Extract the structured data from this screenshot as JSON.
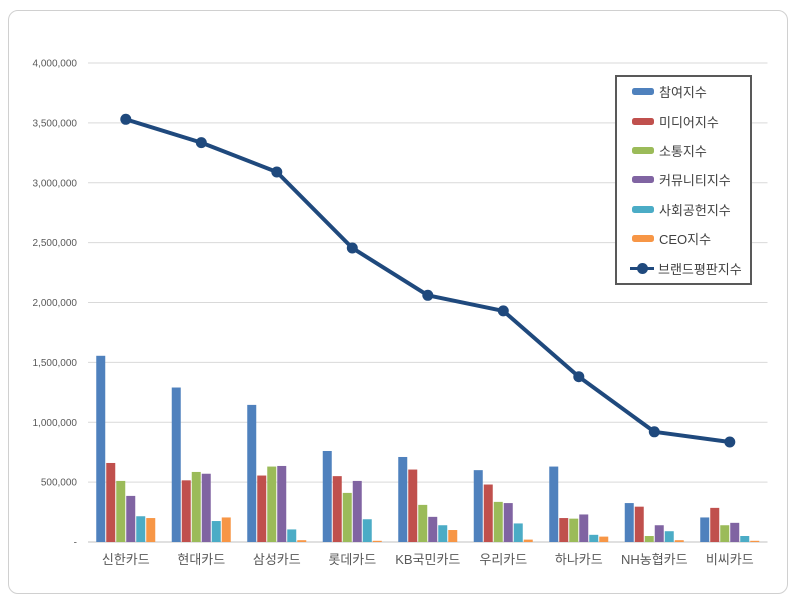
{
  "page": {
    "background": "#ffffff",
    "frame_border_color": "#d0d0d0"
  },
  "chart_data": {
    "type": "combo-bar-line",
    "title": "",
    "categories": [
      "신한카드",
      "현대카드",
      "삼성카드",
      "롯데카드",
      "KB국민카드",
      "우리카드",
      "하나카드",
      "NH농협카드",
      "비씨카드"
    ],
    "series": [
      {
        "name": "참여지수",
        "type": "bar",
        "color": "#4F81BD",
        "values": [
          1555000,
          1290000,
          1145000,
          760000,
          710000,
          600000,
          630000,
          325000,
          205000
        ]
      },
      {
        "name": "미디어지수",
        "type": "bar",
        "color": "#C0504D",
        "values": [
          660000,
          515000,
          555000,
          550000,
          605000,
          480000,
          200000,
          295000,
          285000
        ]
      },
      {
        "name": "소통지수",
        "type": "bar",
        "color": "#9BBB59",
        "values": [
          510000,
          585000,
          630000,
          410000,
          310000,
          335000,
          195000,
          50000,
          140000
        ]
      },
      {
        "name": "커뮤니티지수",
        "type": "bar",
        "color": "#8064A2",
        "values": [
          385000,
          570000,
          635000,
          510000,
          210000,
          325000,
          230000,
          140000,
          160000
        ]
      },
      {
        "name": "사회공헌지수",
        "type": "bar",
        "color": "#4BACC6",
        "values": [
          215000,
          175000,
          105000,
          190000,
          140000,
          155000,
          60000,
          90000,
          50000
        ]
      },
      {
        "name": "CEO지수",
        "type": "bar",
        "color": "#F79646",
        "values": [
          200000,
          205000,
          15000,
          10000,
          100000,
          20000,
          45000,
          15000,
          10000
        ]
      }
    ],
    "line_series": {
      "name": "브랜드평판지수",
      "type": "line",
      "color": "#1F497D",
      "values": [
        3530000,
        3335000,
        3090000,
        2455000,
        2060000,
        1930000,
        1380000,
        920000,
        835000
      ]
    },
    "y_axis": {
      "min": 0,
      "max": 4000000,
      "interval": 500000,
      "ticks": [
        {
          "value": 4000000,
          "label": "4,000,000"
        },
        {
          "value": 3500000,
          "label": "3,500,000"
        },
        {
          "value": 3000000,
          "label": "3,000,000"
        },
        {
          "value": 2500000,
          "label": "2,500,000"
        },
        {
          "value": 2000000,
          "label": "2,000,000"
        },
        {
          "value": 1500000,
          "label": "1,500,000"
        },
        {
          "value": 1000000,
          "label": "1,000,000"
        },
        {
          "value": 500000,
          "label": "500,000"
        },
        {
          "value": 0,
          "label": "-"
        }
      ]
    },
    "legend": {
      "position": "top-right",
      "items": [
        "참여지수",
        "미디어지수",
        "소통지수",
        "커뮤니티지수",
        "사회공헌지수",
        "CEO지수",
        "브랜드평판지수"
      ]
    },
    "grid": true,
    "colors": {
      "gridline": "#d9d9d9",
      "axis_line": "#c0c0c0",
      "tick_text": "#595959",
      "legend_border": "#595959"
    }
  }
}
